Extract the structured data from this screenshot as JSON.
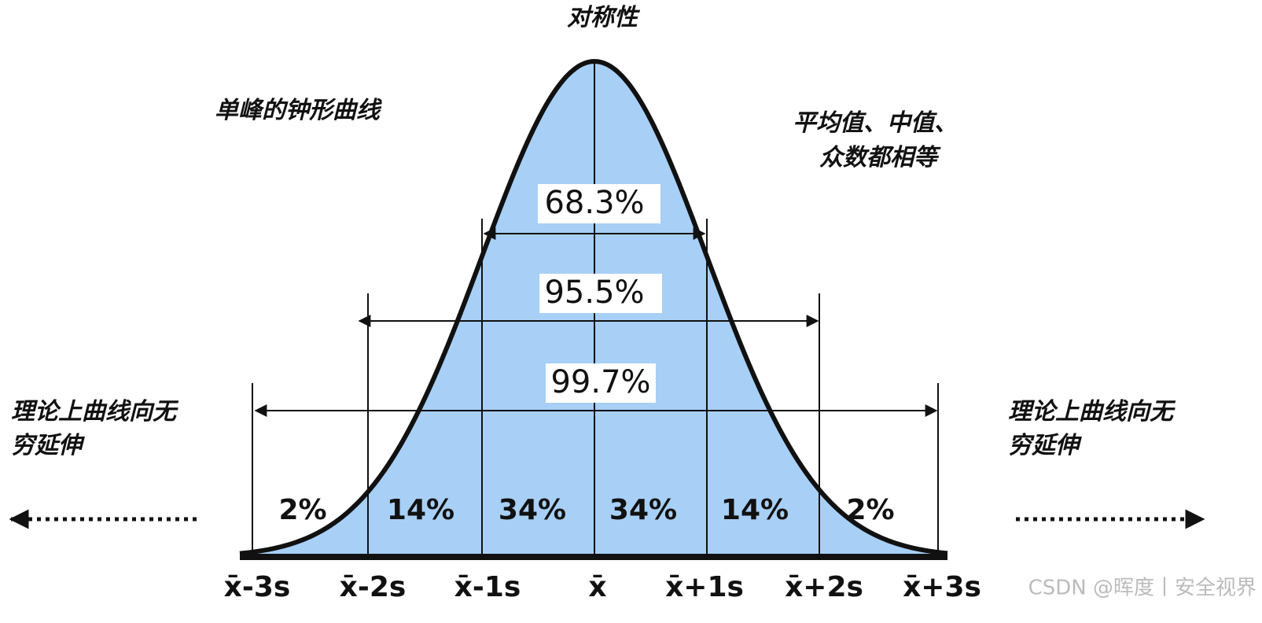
{
  "title": "对称性",
  "annotations": {
    "peak": "单峰的钟形曲线",
    "center": [
      "平均值、中值、",
      "众数都相等"
    ],
    "left_tail": [
      "理论上曲线向无",
      "穷延伸"
    ],
    "right_tail": [
      "理论上曲线向无",
      "穷延伸"
    ]
  },
  "intervals": [
    "68.3%",
    "95.5%",
    "99.7%"
  ],
  "segments": [
    "2%",
    "14%",
    "34%",
    "34%",
    "14%",
    "2%"
  ],
  "axis_labels": [
    "x̄-3s",
    "x̄-2s",
    "x̄-1s",
    "x̄",
    "x̄+1s",
    "x̄+2s",
    "x̄+3s"
  ],
  "watermark": "CSDN @晖度丨安全视界"
}
